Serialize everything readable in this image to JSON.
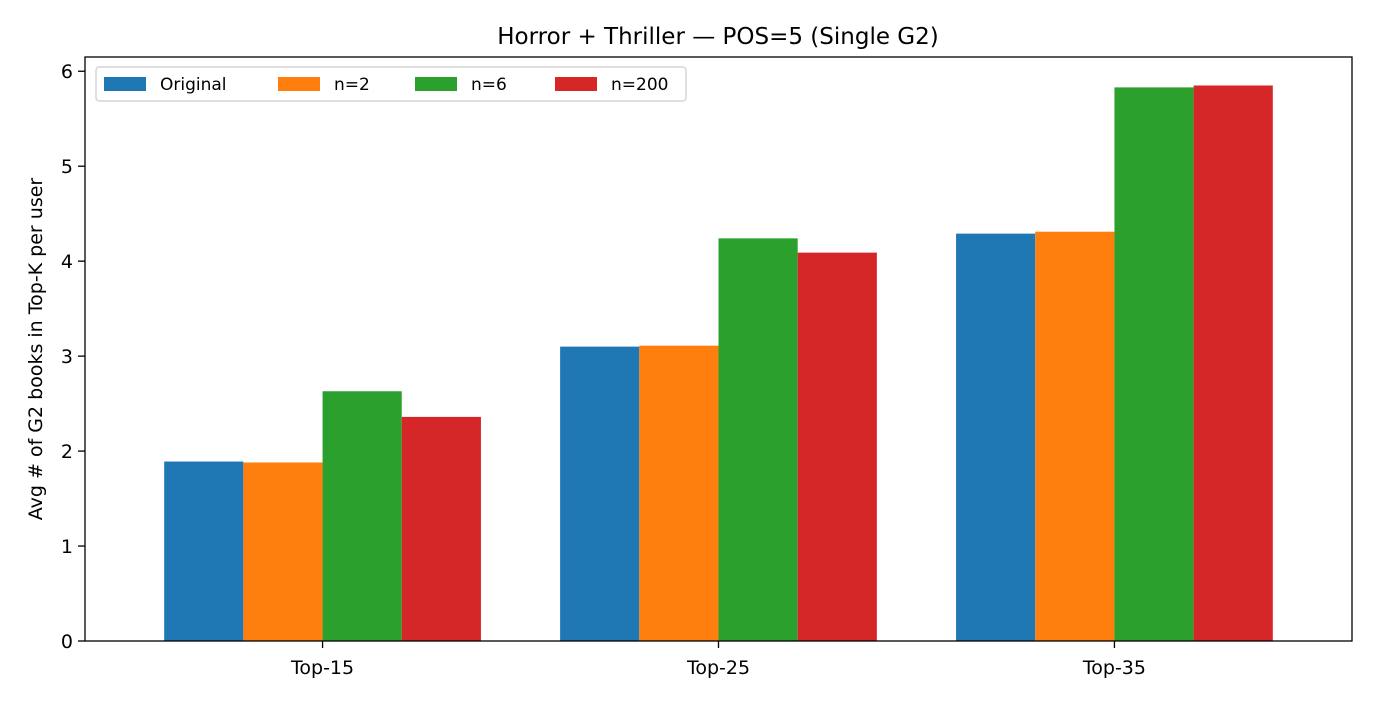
{
  "chart_data": {
    "type": "bar",
    "title": "Horror + Thriller — POS=5 (Single G2)",
    "xlabel": "",
    "ylabel": "Avg # of G2 books in Top-K per user",
    "categories": [
      "Top-15",
      "Top-25",
      "Top-35"
    ],
    "ylim": [
      0,
      6.15
    ],
    "yticks": [
      0,
      1,
      2,
      3,
      4,
      5,
      6
    ],
    "grid": false,
    "legend_position": "top-left",
    "legend_columns": 4,
    "series": [
      {
        "name": "Original",
        "color": "#1f77b4",
        "values": [
          1.89,
          3.1,
          4.29
        ]
      },
      {
        "name": "n=2",
        "color": "#ff7f0e",
        "values": [
          1.88,
          3.11,
          4.31
        ]
      },
      {
        "name": "n=6",
        "color": "#2ca02c",
        "values": [
          2.63,
          4.24,
          5.83
        ]
      },
      {
        "name": "n=200",
        "color": "#d62728",
        "values": [
          2.36,
          4.09,
          5.85
        ]
      }
    ]
  }
}
